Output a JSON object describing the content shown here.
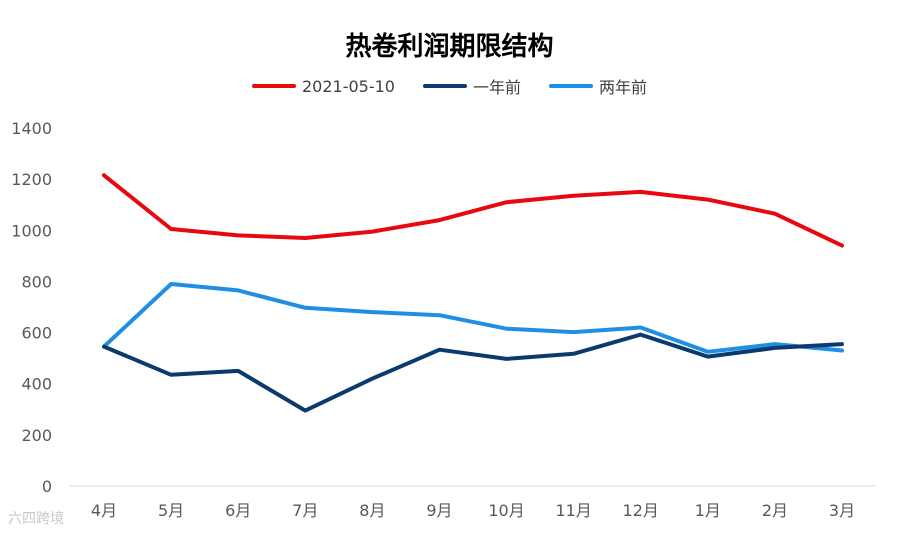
{
  "chart_data": {
    "type": "line",
    "title": "热卷利润期限结构",
    "categories": [
      "4月",
      "5月",
      "6月",
      "7月",
      "8月",
      "9月",
      "10月",
      "11月",
      "12月",
      "1月",
      "2月",
      "3月"
    ],
    "series": [
      {
        "name": "2021-05-10",
        "color": "#e8080f",
        "values": [
          1215,
          1005,
          980,
          970,
          995,
          1040,
          1110,
          1135,
          1150,
          1120,
          1065,
          940
        ]
      },
      {
        "name": "一年前",
        "color": "#0b3a6e",
        "values": [
          545,
          435,
          450,
          295,
          420,
          533,
          497,
          517,
          592,
          506,
          540,
          555
        ]
      },
      {
        "name": "两年前",
        "color": "#1f8fe5",
        "values": [
          545,
          790,
          765,
          697,
          680,
          668,
          615,
          602,
          620,
          525,
          555,
          530
        ]
      }
    ],
    "ylim": [
      0,
      1400
    ],
    "yticks": [
      0,
      200,
      400,
      600,
      800,
      1000,
      1200,
      1400
    ],
    "grid": false,
    "legend_position": "top-center"
  },
  "watermark": "六四跨境"
}
